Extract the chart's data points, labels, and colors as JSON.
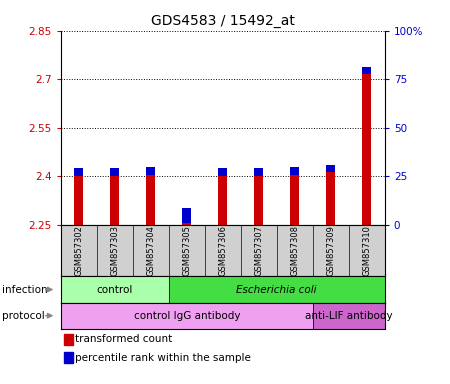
{
  "title": "GDS4583 / 15492_at",
  "samples": [
    "GSM857302",
    "GSM857303",
    "GSM857304",
    "GSM857305",
    "GSM857306",
    "GSM857307",
    "GSM857308",
    "GSM857309",
    "GSM857310"
  ],
  "red_values": [
    2.402,
    2.401,
    2.403,
    2.255,
    2.402,
    2.401,
    2.403,
    2.412,
    2.715
  ],
  "blue_percentiles": [
    4,
    4,
    4,
    8,
    4,
    4,
    4,
    4,
    4
  ],
  "baseline": 2.25,
  "left_yticks": [
    2.25,
    2.4,
    2.55,
    2.7,
    2.85
  ],
  "left_ytick_labels": [
    "2.25",
    "2.4",
    "2.55",
    "2.7",
    "2.85"
  ],
  "right_yticks": [
    0,
    25,
    50,
    75,
    100
  ],
  "right_ytick_labels": [
    "0",
    "25",
    "50",
    "75",
    "100%"
  ],
  "ylim": [
    2.25,
    2.85
  ],
  "right_ylim": [
    0,
    100
  ],
  "infection_groups": [
    {
      "label": "control",
      "start": 0,
      "end": 3,
      "color": "#aaffaa"
    },
    {
      "label": "Escherichia coli",
      "start": 3,
      "end": 9,
      "color": "#44dd44"
    }
  ],
  "protocol_groups": [
    {
      "label": "control IgG antibody",
      "start": 0,
      "end": 7,
      "color": "#f0a0f0"
    },
    {
      "label": "anti-LIF antibody",
      "start": 7,
      "end": 9,
      "color": "#cc66cc"
    }
  ],
  "legend_red": "transformed count",
  "legend_blue": "percentile rank within the sample",
  "red_color": "#cc0000",
  "blue_color": "#0000cc",
  "bar_bg_color": "#d0d0d0",
  "title_fontsize": 10,
  "tick_fontsize": 7.5,
  "left_tick_color": "#cc0000",
  "right_tick_color": "#0000cc"
}
